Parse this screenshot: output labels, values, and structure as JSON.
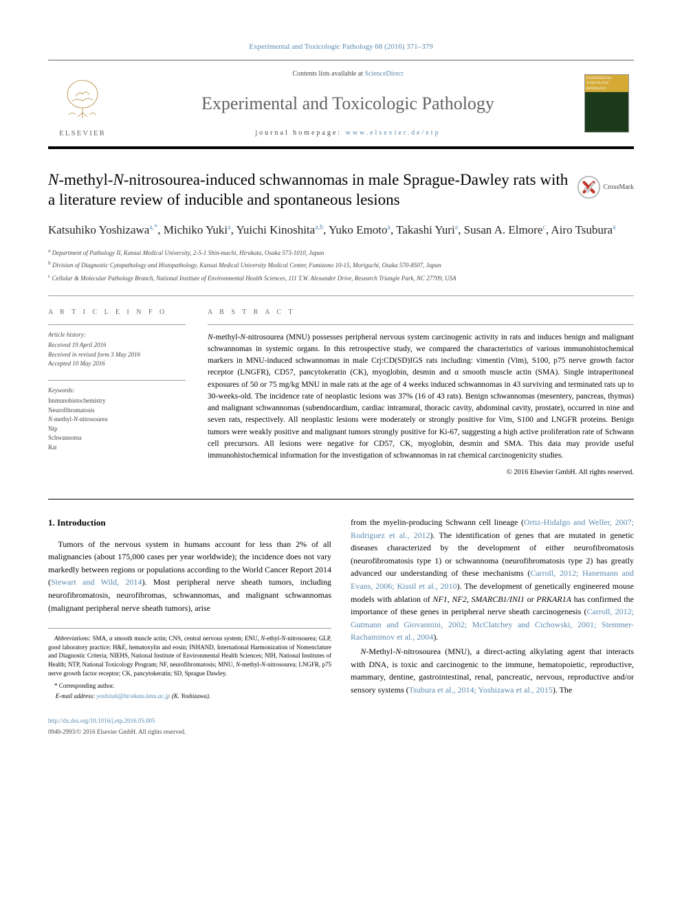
{
  "journal_ref": {
    "journal_link": "Experimental and Toxicologic Pathology",
    "citation": " 68 (2016) 371–379"
  },
  "header": {
    "contents_prefix": "Contents lists available at ",
    "contents_link": "ScienceDirect",
    "journal_name": "Experimental and Toxicologic Pathology",
    "homepage_prefix": "journal homepage: ",
    "homepage_link": "www.elsevier.de/etp",
    "elsevier_label": "ELSEVIER",
    "cover_title": "EXPERIMENTAL TOXICOLOGIC PATHOLOGY"
  },
  "crossmark_label": "CrossMark",
  "title_html": "<i>N</i>-methyl-<i>N</i>-nitrosourea-induced schwannomas in male Sprague-Dawley rats with a literature review of inducible and spontaneous lesions",
  "authors_html": "Katsuhiko Yoshizawa<sup>a,*</sup>, Michiko Yuki<sup>a</sup>, Yuichi Kinoshita<sup>a,b</sup>, Yuko Emoto<sup>a</sup>, Takashi Yuri<sup>a</sup>, Susan A. Elmore<sup>c</sup>, Airo Tsubura<sup>a</sup>",
  "affiliations": [
    {
      "sup": "a",
      "text": " Department of Pathology II, Kansai Medical University, 2-5-1 Shin-machi, Hirakata, Osaka 573-1010, Japan"
    },
    {
      "sup": "b",
      "text": " Division of Diagnostic Cytopathology and Histopathology, Kansai Medical University Medical Center, Fumizono 10-15, Moriguchi, Osaka 570-8507, Japan"
    },
    {
      "sup": "c",
      "text": " Cellular & Molecular Pathology Branch, National Institute of Environmental Health Sciences, 111 T.W. Alexander Drive, Research Triangle Park, NC 27709, USA"
    }
  ],
  "meta": {
    "article_info_head": "A R T I C L E   I N F O",
    "abstract_head": "A B S T R A C T",
    "history_label": "Article history:",
    "history_lines": [
      "Received 19 April 2016",
      "Received in revised form 3 May 2016",
      "Accepted 10 May 2016"
    ],
    "keywords_label": "Keywords:",
    "keywords": [
      "Immunohistochemistry",
      "Neurofibromatosis",
      "N-methyl-N-nitrosourea",
      "Ntp",
      "Schwannoma",
      "Rat"
    ]
  },
  "abstract_html": "<i>N</i>-methyl-<i>N</i>-nitrosourea (MNU) possesses peripheral nervous system carcinogenic activity in rats and induces benign and malignant schwannomas in systemic organs. In this retrospective study, we compared the characteristics of various immunohistochemical markers in MNU-induced schwannomas in male Crj:CD(SD)IGS rats including: vimentin (Vim), S100, p75 nerve growth factor receptor (LNGFR), CD57, pancytokeratin (CK), myoglobin, desmin and α smooth muscle actin (SMA). Single intraperitoneal exposures of 50 or 75 mg/kg MNU in male rats at the age of 4 weeks induced schwannomas in 43 surviving and terminated rats up to 30-weeks-old. The incidence rate of neoplastic lesions was 37% (16 of 43 rats). Benign schwannomas (mesentery, pancreas, thymus) and malignant schwannomas (subendocardium, cardiac intramural, thoracic cavity, abdominal cavity, prostate), occurred in nine and seven rats, respectively. All neoplastic lesions were moderately or strongly positive for Vim, S100 and LNGFR proteins. Benign tumors were weakly positive and malignant tumors strongly positive for Ki-67, suggesting a high active proliferation rate of Schwann cell precursors. All lesions were negative for CD57, CK, myoglobin, desmin and SMA. This data may provide useful immunohistochemical information for the investigation of schwannomas in rat chemical carcinogenicity studies.",
  "copyright": "© 2016 Elsevier GmbH. All rights reserved.",
  "intro": {
    "heading": "1. Introduction",
    "p1_html": "Tumors of the nervous system in humans account for less than 2% of all malignancies (about 175,000 cases per year worldwide); the incidence does not vary markedly between regions or populations according to the World Cancer Report 2014 (<a>Stewart and Wild, 2014</a>). Most peripheral nerve sheath tumors, including neurofibromatosis, neurofibromas, schwannomas, and malignant schwannomas (malignant peripheral nerve sheath tumors), arise",
    "p2_html": "from the myelin-producing Schwann cell lineage (<a>Ortiz-Hidalgo and Weller, 2007; Rodriguez et al., 2012</a>). The identification of genes that are mutated in genetic diseases characterized by the development of either neurofibromatosis (neurofibromatosis type 1) or schwannoma (neurofibromatosis type 2) has greatly advanced our understanding of these mechanisms (<a>Carroll, 2012; Hanemann and Evans, 2006; Kissil et al., 2010</a>). The development of genetically engineered mouse models with ablation of <i>NF1</i>, <i>NF2</i>, <i>SMARCB1/INI1</i> or <i>PRKAR1A</i> has confirmed the importance of these genes in peripheral nerve sheath carcinogenesis (<a>Carroll, 2012; Gutmann and Giovannini, 2002; McClatchey and Cichowski, 2001; Stemmer-Rachamimov et al., 2004</a>).",
    "p3_html": "<i>N</i>-Methyl-<i>N</i>-nitrosourea (MNU), a direct-acting alkylating agent that interacts with DNA, is toxic and carcinogenic to the immune, hematopoietic, reproductive, mammary, dentine, gastrointestinal, renal, pancreatic, nervous, reproductive and/or sensory systems (<a>Tsubura et al., 2014; Yoshizawa et al., 2015</a>). The"
  },
  "footnotes": {
    "abbrev_html": "<i>Abbreviations:</i> SMA, α smooth muscle actin; CNS, central nervous system; ENU, <i>N</i>-ethyl-<i>N</i>-nitrosourea; GLP, good laboratory practice; H&amp;E, hematoxylin and eosin; INHAND, International Harmonization of Nomenclature and Diagnostic Criteria; NIEHS, National Institute of Environmental Health Sciences; NIH, National Institutes of Health; NTP, National Toxicology Program; NF, neurofibromatosis; MNU, <i>N</i>-methyl-<i>N</i>-nitrosourea; LNGFR, p75 nerve growth factor receptor; CK, pancytokeratin; SD, Sprague Dawley.",
    "corr": "* Corresponding author.",
    "email_label": "E-mail address: ",
    "email_link": "yoshizak@hirakata.kmu.ac.jp",
    "email_suffix": " (K. Yoshizawa)."
  },
  "doi": {
    "link": "http://dx.doi.org/10.1016/j.etp.2016.05.005",
    "issn": "0940-2993/© 2016 Elsevier GmbH. All rights reserved."
  },
  "colors": {
    "link": "#5a8ab0",
    "text": "#000000",
    "muted": "#666666",
    "rule": "#999999"
  }
}
